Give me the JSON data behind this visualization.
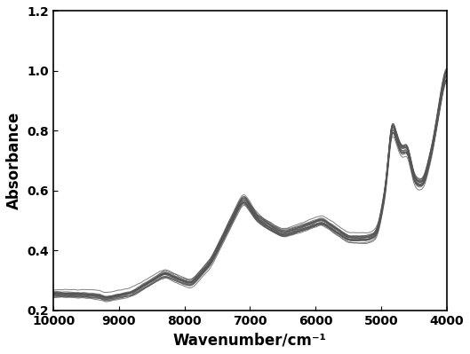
{
  "xlabel": "Wavenumber/cm⁻¹",
  "ylabel": "Absorbance",
  "xlim": [
    10000,
    4000
  ],
  "ylim": [
    0.2,
    1.2
  ],
  "yticks": [
    0.2,
    0.4,
    0.6,
    0.8,
    1.0,
    1.2
  ],
  "xticks": [
    10000,
    9000,
    8000,
    7000,
    6000,
    5000,
    4000
  ],
  "n_spectra": 20,
  "line_color": "#555555",
  "line_alpha": 0.75,
  "line_width": 0.7,
  "background_color": "#ffffff"
}
